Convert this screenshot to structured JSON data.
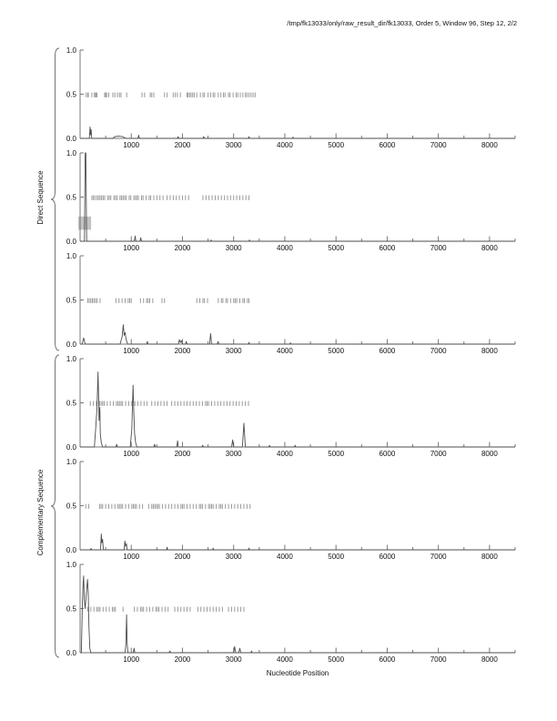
{
  "title": "/tmp/fk13033/only/raw_result_dir/fk13033, Order 5, Window 96, Step 12, 2/2",
  "xlabel": "Nucleotide Position",
  "group_labels": {
    "direct": "Direct Sequence",
    "complementary": "Complementary Sequence"
  },
  "chart_data": {
    "type": "line",
    "xlim": [
      0,
      8500
    ],
    "ylim": [
      0,
      1
    ],
    "x_major_ticks": [
      1000,
      2000,
      3000,
      4000,
      5000,
      6000,
      7000,
      8000
    ],
    "x_minor_tick_step": 500,
    "y_ticks": [
      {
        "v": 0.0,
        "label": "0.0"
      },
      {
        "v": 0.5,
        "label": "0.5"
      },
      {
        "v": 1.0,
        "label": "1.0"
      }
    ],
    "rug_level": 0.5,
    "grid": false,
    "legend": "none",
    "colors": {
      "axis": "#777777",
      "curve": "#4d4d4d",
      "rug": "#999999",
      "labels": "#111111",
      "highlight": "#c2c2c2",
      "brace": "#666666"
    },
    "subplots": [
      {
        "id": 1,
        "group": "direct",
        "curve": [
          [
            0,
            0
          ],
          [
            180,
            0
          ],
          [
            195,
            0.13
          ],
          [
            205,
            0.04
          ],
          [
            215,
            0.1
          ],
          [
            228,
            0
          ],
          [
            640,
            0
          ],
          [
            680,
            0.02
          ],
          [
            750,
            0.025
          ],
          [
            830,
            0.02
          ],
          [
            900,
            0
          ],
          [
            1130,
            0
          ],
          [
            1145,
            0.035
          ],
          [
            1160,
            0
          ],
          [
            1900,
            0
          ],
          [
            1915,
            0.02
          ],
          [
            1930,
            0
          ],
          [
            2400,
            0
          ],
          [
            2415,
            0.02
          ],
          [
            2430,
            0
          ],
          [
            3290,
            0
          ],
          [
            3300,
            0.02
          ],
          [
            3310,
            0
          ],
          [
            4150,
            0
          ],
          [
            4160,
            0.015
          ],
          [
            4170,
            0
          ],
          [
            8500,
            0
          ]
        ],
        "rug": [
          120,
          150,
          160,
          230,
          280,
          300,
          310,
          330,
          480,
          500,
          520,
          560,
          640,
          680,
          730,
          770,
          800,
          910,
          1210,
          1260,
          1370,
          1400,
          1440,
          1650,
          1700,
          1820,
          1860,
          1900,
          1960,
          2090,
          2110,
          2140,
          2170,
          2200,
          2230,
          2280,
          2350,
          2400,
          2430,
          2500,
          2550,
          2600,
          2630,
          2700,
          2750,
          2800,
          2830,
          2900,
          2930,
          2990,
          3050,
          3080,
          3130,
          3180,
          3230,
          3260,
          3300,
          3340,
          3380,
          3420
        ]
      },
      {
        "id": 2,
        "group": "direct",
        "highlight_rect": {
          "x0": -35,
          "x1": 215,
          "y0": 0.13,
          "y1": 0.28
        },
        "curve": [
          [
            0,
            0
          ],
          [
            85,
            0
          ],
          [
            100,
            1.0
          ],
          [
            112,
            1.0
          ],
          [
            128,
            0
          ],
          [
            1060,
            0
          ],
          [
            1075,
            0.06
          ],
          [
            1090,
            0
          ],
          [
            1170,
            0
          ],
          [
            1185,
            0.04
          ],
          [
            1200,
            0
          ],
          [
            2550,
            0
          ],
          [
            2560,
            0.015
          ],
          [
            2570,
            0
          ],
          [
            3300,
            0
          ],
          [
            3310,
            0.015
          ],
          [
            3320,
            0
          ],
          [
            8500,
            0
          ]
        ],
        "rug": [
          230,
          260,
          290,
          330,
          360,
          390,
          420,
          450,
          480,
          540,
          570,
          600,
          660,
          690,
          720,
          780,
          810,
          840,
          870,
          900,
          960,
          990,
          1050,
          1080,
          1110,
          1140,
          1200,
          1230,
          1290,
          1350,
          1380,
          1440,
          1500,
          1560,
          1620,
          1700,
          1760,
          1820,
          1880,
          1940,
          2000,
          2060,
          2120,
          2400,
          2460,
          2520,
          2580,
          2640,
          2700,
          2760,
          2820,
          2880,
          2940,
          3000,
          3060,
          3120,
          3180,
          3240,
          3300
        ]
      },
      {
        "id": 3,
        "group": "direct",
        "curve": [
          [
            0,
            0
          ],
          [
            40,
            0
          ],
          [
            70,
            0.07
          ],
          [
            100,
            0
          ],
          [
            780,
            0
          ],
          [
            820,
            0.08
          ],
          [
            845,
            0.22
          ],
          [
            860,
            0.1
          ],
          [
            880,
            0.13
          ],
          [
            900,
            0.05
          ],
          [
            930,
            0
          ],
          [
            1300,
            0
          ],
          [
            1315,
            0.03
          ],
          [
            1330,
            0
          ],
          [
            1920,
            0
          ],
          [
            1940,
            0.05
          ],
          [
            1960,
            0.02
          ],
          [
            1980,
            0.04
          ],
          [
            2000,
            0
          ],
          [
            2060,
            0
          ],
          [
            2075,
            0.03
          ],
          [
            2090,
            0
          ],
          [
            2530,
            0
          ],
          [
            2550,
            0.12
          ],
          [
            2570,
            0
          ],
          [
            2680,
            0
          ],
          [
            2695,
            0.03
          ],
          [
            2710,
            0
          ],
          [
            3290,
            0
          ],
          [
            3300,
            0.02
          ],
          [
            3310,
            0
          ],
          [
            4100,
            0
          ],
          [
            4110,
            0.015
          ],
          [
            4120,
            0
          ],
          [
            8500,
            0
          ]
        ],
        "rug": [
          150,
          180,
          210,
          240,
          270,
          300,
          330,
          390,
          700,
          760,
          820,
          880,
          940,
          970,
          1000,
          1180,
          1240,
          1300,
          1330,
          1360,
          1420,
          1600,
          1650,
          2280,
          2340,
          2400,
          2430,
          2490,
          2700,
          2760,
          2790,
          2850,
          2880,
          2940,
          3000,
          3030,
          3060,
          3120,
          3180,
          3210,
          3270,
          3300
        ]
      },
      {
        "id": 4,
        "group": "complementary",
        "curve": [
          [
            0,
            0
          ],
          [
            280,
            0
          ],
          [
            310,
            0.25
          ],
          [
            330,
            0.45
          ],
          [
            350,
            0.85
          ],
          [
            362,
            0.55
          ],
          [
            370,
            0.3
          ],
          [
            385,
            0.45
          ],
          [
            395,
            0.15
          ],
          [
            415,
            0.05
          ],
          [
            440,
            0
          ],
          [
            700,
            0
          ],
          [
            715,
            0.03
          ],
          [
            730,
            0
          ],
          [
            980,
            0
          ],
          [
            1010,
            0.2
          ],
          [
            1035,
            0.7
          ],
          [
            1050,
            0.4
          ],
          [
            1065,
            0.15
          ],
          [
            1085,
            0.05
          ],
          [
            1110,
            0
          ],
          [
            1440,
            0
          ],
          [
            1455,
            0.03
          ],
          [
            1470,
            0
          ],
          [
            1890,
            0
          ],
          [
            1905,
            0.07
          ],
          [
            1920,
            0
          ],
          [
            2380,
            0
          ],
          [
            2395,
            0.02
          ],
          [
            2410,
            0
          ],
          [
            2960,
            0
          ],
          [
            2980,
            0.08
          ],
          [
            3000,
            0
          ],
          [
            3170,
            0
          ],
          [
            3200,
            0.27
          ],
          [
            3230,
            0
          ],
          [
            3690,
            0
          ],
          [
            3700,
            0.02
          ],
          [
            3710,
            0
          ],
          [
            4190,
            0
          ],
          [
            4200,
            0.02
          ],
          [
            4210,
            0
          ],
          [
            8500,
            0
          ]
        ],
        "rug": [
          200,
          260,
          320,
          380,
          410,
          440,
          470,
          530,
          590,
          650,
          710,
          740,
          770,
          800,
          830,
          890,
          950,
          1010,
          1070,
          1130,
          1190,
          1250,
          1310,
          1400,
          1460,
          1520,
          1580,
          1640,
          1700,
          1790,
          1850,
          1910,
          1970,
          2030,
          2090,
          2150,
          2210,
          2270,
          2330,
          2390,
          2450,
          2480,
          2510,
          2570,
          2630,
          2690,
          2750,
          2810,
          2870,
          2930,
          2990,
          3050,
          3110,
          3170,
          3230,
          3290
        ]
      },
      {
        "id": 5,
        "group": "complementary",
        "curve": [
          [
            0,
            0
          ],
          [
            200,
            0
          ],
          [
            215,
            0.015
          ],
          [
            230,
            0
          ],
          [
            400,
            0
          ],
          [
            415,
            0.18
          ],
          [
            425,
            0.08
          ],
          [
            440,
            0.12
          ],
          [
            455,
            0
          ],
          [
            860,
            0
          ],
          [
            875,
            0.1
          ],
          [
            890,
            0.04
          ],
          [
            905,
            0.07
          ],
          [
            920,
            0
          ],
          [
            1690,
            0
          ],
          [
            1700,
            0.03
          ],
          [
            1710,
            0
          ],
          [
            2590,
            0
          ],
          [
            2600,
            0.02
          ],
          [
            2610,
            0
          ],
          [
            3290,
            0
          ],
          [
            3300,
            0.02
          ],
          [
            3310,
            0
          ],
          [
            8500,
            0
          ]
        ],
        "rug": [
          110,
          170,
          380,
          410,
          440,
          500,
          560,
          620,
          680,
          740,
          770,
          800,
          830,
          890,
          950,
          1010,
          1040,
          1070,
          1100,
          1160,
          1220,
          1340,
          1400,
          1430,
          1460,
          1490,
          1520,
          1550,
          1610,
          1670,
          1730,
          1790,
          1850,
          1910,
          1970,
          2000,
          2030,
          2090,
          2150,
          2210,
          2270,
          2330,
          2360,
          2390,
          2450,
          2510,
          2540,
          2570,
          2600,
          2660,
          2720,
          2750,
          2780,
          2840,
          2900,
          2960,
          3020,
          3080,
          3140,
          3200,
          3260,
          3320
        ]
      },
      {
        "id": 6,
        "group": "complementary",
        "curve": [
          [
            0,
            0
          ],
          [
            25,
            0
          ],
          [
            45,
            0.55
          ],
          [
            60,
            0.8
          ],
          [
            70,
            0.87
          ],
          [
            82,
            0.6
          ],
          [
            100,
            0.5
          ],
          [
            120,
            0.65
          ],
          [
            145,
            0.83
          ],
          [
            158,
            0.7
          ],
          [
            172,
            0.3
          ],
          [
            190,
            0.05
          ],
          [
            210,
            0
          ],
          [
            880,
            0
          ],
          [
            895,
            0.1
          ],
          [
            908,
            0.43
          ],
          [
            920,
            0.1
          ],
          [
            935,
            0
          ],
          [
            1040,
            0
          ],
          [
            1055,
            0.05
          ],
          [
            1070,
            0
          ],
          [
            1740,
            0
          ],
          [
            1755,
            0.02
          ],
          [
            1770,
            0
          ],
          [
            3000,
            0
          ],
          [
            3020,
            0.07
          ],
          [
            3040,
            0
          ],
          [
            3100,
            0
          ],
          [
            3120,
            0.05
          ],
          [
            3140,
            0
          ],
          [
            3340,
            0
          ],
          [
            3350,
            0.02
          ],
          [
            3360,
            0
          ],
          [
            8500,
            0
          ]
        ],
        "rug": [
          150,
          210,
          270,
          330,
          360,
          390,
          450,
          510,
          570,
          630,
          660,
          690,
          840,
          1060,
          1120,
          1180,
          1210,
          1240,
          1300,
          1360,
          1420,
          1480,
          1510,
          1540,
          1600,
          1660,
          1720,
          1850,
          1910,
          1970,
          2030,
          2090,
          2150,
          2300,
          2360,
          2420,
          2480,
          2540,
          2600,
          2660,
          2720,
          2780,
          2900,
          2960,
          3020,
          3080,
          3140,
          3200
        ]
      }
    ]
  }
}
